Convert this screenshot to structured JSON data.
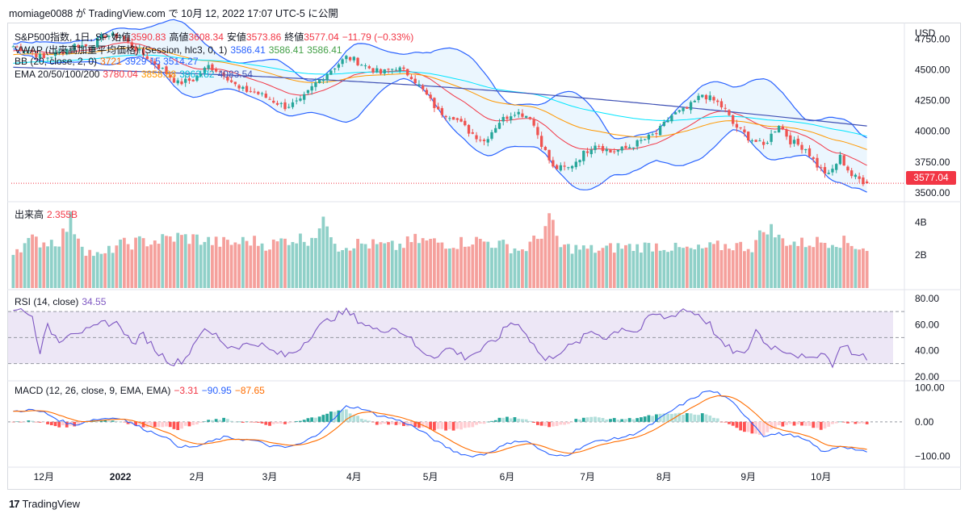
{
  "header": {
    "publisher_line": "momiage0088 が TradingView.com で 10月 12, 2022 17:07 UTC-5 に公開"
  },
  "footer": {
    "logo_glyph": "17",
    "brand": "TradingView"
  },
  "colors": {
    "up": "#26a69a",
    "down": "#ef5350",
    "vol_up": "#8fd0c8",
    "vol_down": "#f5a09c",
    "bb": "#2962ff",
    "bb_fill": "#e3f2fd",
    "ema20": "#f23645",
    "ema50": "#ff9800",
    "ema100": "#00e5ff",
    "ema200": "#3f51b5",
    "rsi": "#7e57c2",
    "rsi_band": "#ede7f6",
    "macd": "#2962ff",
    "signal": "#ff6d00",
    "hist_up_strong": "#26a69a",
    "hist_up_weak": "#b2dfdb",
    "hist_down_strong": "#ff5252",
    "hist_down_weak": "#ffcdd2"
  },
  "legend": {
    "main": {
      "symbol": "S&P500指数, 1日, SP",
      "o_label": "始值",
      "o": "3590.83",
      "h_label": "高値",
      "h": "3608.34",
      "l_label": "安値",
      "l": "3573.86",
      "c_label": "終値",
      "c": "3577.04",
      "chg": "−11.79 (−0.33%)"
    },
    "vwap": {
      "label": "VWAP (出来高加重平均価格) (Session, hlc3, 0, 1)",
      "v1": "3586.41",
      "v2": "3586.41",
      "v3": "3586.41"
    },
    "bb": {
      "label": "BB (20, close, 2, 0)",
      "v1": "3721",
      "v2": "3929",
      "v3": "15 3514.27"
    },
    "ema": {
      "label": "EMA 20/50/100/200",
      "v1": "3780.04",
      "v2": "3858.88",
      "v3": "3963.82",
      "v4": "4083.54"
    },
    "volume": {
      "label": "出来高",
      "value": "2.355B"
    },
    "rsi": {
      "label": "RSI (14, close)",
      "value": "34.55"
    },
    "macd": {
      "label": "MACD (12, 26, close, 9, EMA, EMA)",
      "hist": "−3.31",
      "macd": "−90.95",
      "signal": "−87.65"
    }
  },
  "price_axis": {
    "currency": "USD",
    "ticks": [
      "4750.00",
      "4500.00",
      "4250.00",
      "4000.00",
      "3750.00",
      "3500.00"
    ],
    "last_price": "3577.04"
  },
  "volume_axis": {
    "ticks": [
      "4B",
      "2B"
    ]
  },
  "rsi_axis": {
    "ticks": [
      "80.00",
      "60.00",
      "40.00",
      "20.00"
    ]
  },
  "macd_axis": {
    "ticks": [
      "100.00",
      "0.00",
      "−100.00"
    ]
  },
  "time_axis": {
    "labels": [
      "12月",
      "2022",
      "2月",
      "3月",
      "4月",
      "5月",
      "6月",
      "7月",
      "8月",
      "9月",
      "10月"
    ],
    "label_bars": [
      8,
      28,
      48,
      67,
      89,
      109,
      129,
      150,
      170,
      192,
      211
    ]
  },
  "chart_data": {
    "type": "candlestick",
    "title": "S&P500指数, 1日, SP",
    "x_range": [
      "2021-11-15",
      "2022-10-12"
    ],
    "y_range": [
      3460,
      4870
    ],
    "price_anchors": [
      [
        0,
        4690
      ],
      [
        4,
        4660
      ],
      [
        8,
        4590
      ],
      [
        12,
        4640
      ],
      [
        16,
        4700
      ],
      [
        20,
        4690
      ],
      [
        24,
        4780
      ],
      [
        28,
        4770
      ],
      [
        31,
        4690
      ],
      [
        35,
        4600
      ],
      [
        39,
        4500
      ],
      [
        43,
        4390
      ],
      [
        47,
        4420
      ],
      [
        51,
        4530
      ],
      [
        55,
        4470
      ],
      [
        59,
        4340
      ],
      [
        63,
        4320
      ],
      [
        67,
        4260
      ],
      [
        71,
        4200
      ],
      [
        75,
        4240
      ],
      [
        79,
        4390
      ],
      [
        83,
        4500
      ],
      [
        87,
        4600
      ],
      [
        89,
        4580
      ],
      [
        92,
        4530
      ],
      [
        96,
        4470
      ],
      [
        100,
        4520
      ],
      [
        104,
        4450
      ],
      [
        108,
        4290
      ],
      [
        111,
        4160
      ],
      [
        115,
        4120
      ],
      [
        119,
        4000
      ],
      [
        123,
        3920
      ],
      [
        127,
        4080
      ],
      [
        131,
        4160
      ],
      [
        135,
        4120
      ],
      [
        138,
        3900
      ],
      [
        141,
        3700
      ],
      [
        145,
        3700
      ],
      [
        149,
        3820
      ],
      [
        152,
        3900
      ],
      [
        156,
        3830
      ],
      [
        160,
        3860
      ],
      [
        164,
        3920
      ],
      [
        168,
        3980
      ],
      [
        172,
        4130
      ],
      [
        176,
        4180
      ],
      [
        180,
        4300
      ],
      [
        184,
        4230
      ],
      [
        186,
        4170
      ],
      [
        188,
        4060
      ],
      [
        192,
        3950
      ],
      [
        196,
        3880
      ],
      [
        200,
        4060
      ],
      [
        203,
        3920
      ],
      [
        207,
        3860
      ],
      [
        210,
        3720
      ],
      [
        213,
        3640
      ],
      [
        216,
        3790
      ],
      [
        219,
        3640
      ],
      [
        223,
        3577
      ]
    ],
    "volume_anchors": [
      [
        0,
        2.3
      ],
      [
        5,
        2.9
      ],
      [
        8,
        2.8
      ],
      [
        12,
        2.9
      ],
      [
        15,
        4.1
      ],
      [
        19,
        2.3
      ],
      [
        23,
        1.9
      ],
      [
        27,
        2.6
      ],
      [
        33,
        2.8
      ],
      [
        38,
        2.9
      ],
      [
        43,
        3.1
      ],
      [
        48,
        3.0
      ],
      [
        52,
        2.8
      ],
      [
        57,
        2.7
      ],
      [
        62,
        2.9
      ],
      [
        67,
        2.6
      ],
      [
        72,
        3.0
      ],
      [
        77,
        3.0
      ],
      [
        82,
        4.0
      ],
      [
        85,
        2.5
      ],
      [
        90,
        2.7
      ],
      [
        95,
        2.6
      ],
      [
        100,
        2.5
      ],
      [
        105,
        2.9
      ],
      [
        110,
        2.8
      ],
      [
        115,
        2.7
      ],
      [
        120,
        2.9
      ],
      [
        124,
        2.8
      ],
      [
        128,
        2.6
      ],
      [
        133,
        2.3
      ],
      [
        137,
        3.0
      ],
      [
        140,
        4.2
      ],
      [
        143,
        2.5
      ],
      [
        148,
        2.4
      ],
      [
        153,
        2.3
      ],
      [
        158,
        2.5
      ],
      [
        163,
        2.5
      ],
      [
        168,
        2.6
      ],
      [
        173,
        2.4
      ],
      [
        178,
        2.3
      ],
      [
        183,
        2.5
      ],
      [
        188,
        2.6
      ],
      [
        193,
        2.5
      ],
      [
        197,
        3.8
      ],
      [
        200,
        3.0
      ],
      [
        205,
        2.7
      ],
      [
        210,
        2.8
      ],
      [
        215,
        2.9
      ],
      [
        220,
        2.6
      ],
      [
        223,
        2.4
      ]
    ],
    "rsi_anchors": [
      [
        0,
        70
      ],
      [
        3,
        72
      ],
      [
        5,
        65
      ],
      [
        7,
        40
      ],
      [
        9,
        58
      ],
      [
        12,
        48
      ],
      [
        15,
        55
      ],
      [
        20,
        55
      ],
      [
        24,
        62
      ],
      [
        28,
        60
      ],
      [
        31,
        45
      ],
      [
        34,
        52
      ],
      [
        38,
        38
      ],
      [
        42,
        30
      ],
      [
        45,
        34
      ],
      [
        49,
        55
      ],
      [
        53,
        52
      ],
      [
        56,
        43
      ],
      [
        60,
        44
      ],
      [
        64,
        46
      ],
      [
        67,
        40
      ],
      [
        71,
        36
      ],
      [
        74,
        40
      ],
      [
        79,
        56
      ],
      [
        83,
        65
      ],
      [
        87,
        70
      ],
      [
        91,
        62
      ],
      [
        95,
        55
      ],
      [
        99,
        58
      ],
      [
        103,
        52
      ],
      [
        106,
        40
      ],
      [
        110,
        36
      ],
      [
        114,
        42
      ],
      [
        118,
        35
      ],
      [
        122,
        40
      ],
      [
        126,
        48
      ],
      [
        130,
        62
      ],
      [
        133,
        58
      ],
      [
        136,
        44
      ],
      [
        139,
        32
      ],
      [
        143,
        40
      ],
      [
        147,
        45
      ],
      [
        151,
        55
      ],
      [
        155,
        50
      ],
      [
        159,
        58
      ],
      [
        163,
        54
      ],
      [
        167,
        68
      ],
      [
        171,
        65
      ],
      [
        175,
        72
      ],
      [
        179,
        68
      ],
      [
        182,
        60
      ],
      [
        185,
        45
      ],
      [
        188,
        40
      ],
      [
        191,
        36
      ],
      [
        194,
        56
      ],
      [
        197,
        44
      ],
      [
        200,
        42
      ],
      [
        204,
        38
      ],
      [
        208,
        32
      ],
      [
        211,
        40
      ],
      [
        214,
        30
      ],
      [
        217,
        46
      ],
      [
        220,
        36
      ],
      [
        223,
        34.55
      ]
    ],
    "macd_anchors": [
      [
        0,
        30
      ],
      [
        4,
        35
      ],
      [
        8,
        28
      ],
      [
        12,
        5
      ],
      [
        16,
        -10
      ],
      [
        20,
        5
      ],
      [
        24,
        10
      ],
      [
        28,
        12
      ],
      [
        31,
        -5
      ],
      [
        35,
        -25
      ],
      [
        39,
        -40
      ],
      [
        43,
        -70
      ],
      [
        47,
        -75
      ],
      [
        51,
        -60
      ],
      [
        55,
        -45
      ],
      [
        59,
        -50
      ],
      [
        63,
        -55
      ],
      [
        67,
        -70
      ],
      [
        71,
        -75
      ],
      [
        75,
        -65
      ],
      [
        79,
        -40
      ],
      [
        83,
        0
      ],
      [
        87,
        45
      ],
      [
        91,
        40
      ],
      [
        95,
        20
      ],
      [
        99,
        10
      ],
      [
        103,
        -5
      ],
      [
        107,
        -30
      ],
      [
        111,
        -60
      ],
      [
        115,
        -85
      ],
      [
        119,
        -100
      ],
      [
        123,
        -95
      ],
      [
        127,
        -75
      ],
      [
        131,
        -55
      ],
      [
        135,
        -60
      ],
      [
        138,
        -85
      ],
      [
        141,
        -100
      ],
      [
        145,
        -95
      ],
      [
        149,
        -70
      ],
      [
        153,
        -55
      ],
      [
        157,
        -50
      ],
      [
        161,
        -40
      ],
      [
        165,
        -20
      ],
      [
        169,
        10
      ],
      [
        173,
        40
      ],
      [
        177,
        65
      ],
      [
        181,
        90
      ],
      [
        184,
        85
      ],
      [
        188,
        55
      ],
      [
        192,
        10
      ],
      [
        196,
        -40
      ],
      [
        200,
        -35
      ],
      [
        204,
        -40
      ],
      [
        208,
        -60
      ],
      [
        212,
        -90
      ],
      [
        216,
        -70
      ],
      [
        220,
        -80
      ],
      [
        223,
        -90.95
      ]
    ]
  }
}
